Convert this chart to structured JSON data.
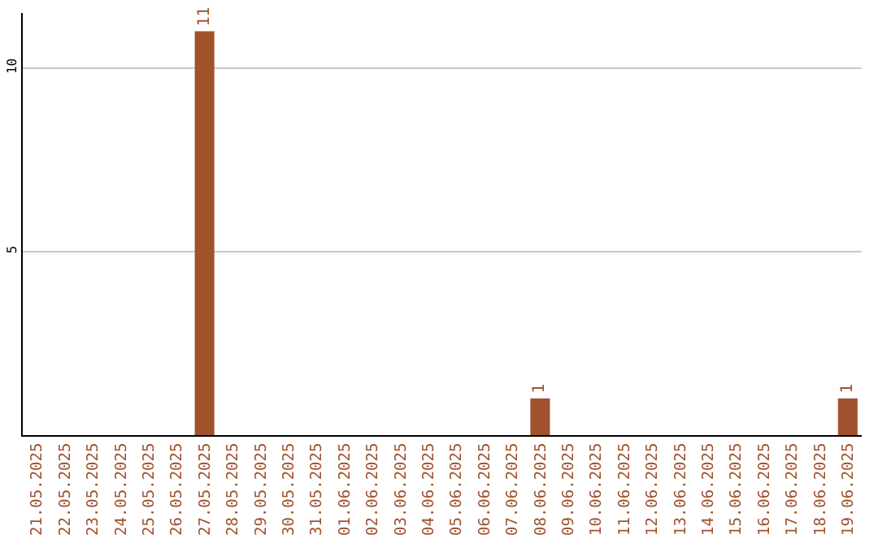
{
  "chart_data": {
    "type": "bar",
    "categories": [
      "21.05.2025",
      "22.05.2025",
      "23.05.2025",
      "24.05.2025",
      "25.05.2025",
      "26.05.2025",
      "27.05.2025",
      "28.05.2025",
      "29.05.2025",
      "30.05.2025",
      "31.05.2025",
      "01.06.2025",
      "02.06.2025",
      "03.06.2025",
      "04.06.2025",
      "05.06.2025",
      "06.06.2025",
      "07.06.2025",
      "08.06.2025",
      "09.06.2025",
      "10.06.2025",
      "11.06.2025",
      "12.06.2025",
      "13.06.2025",
      "14.06.2025",
      "15.06.2025",
      "16.06.2025",
      "17.06.2025",
      "18.06.2025",
      "19.06.2025"
    ],
    "values": [
      0,
      0,
      0,
      0,
      0,
      0,
      11,
      0,
      0,
      0,
      0,
      0,
      0,
      0,
      0,
      0,
      0,
      0,
      1,
      0,
      0,
      0,
      0,
      0,
      0,
      0,
      0,
      0,
      0,
      1
    ],
    "value_labels": [
      null,
      null,
      null,
      null,
      null,
      null,
      "11",
      null,
      null,
      null,
      null,
      null,
      null,
      null,
      null,
      null,
      null,
      null,
      "1",
      null,
      null,
      null,
      null,
      null,
      null,
      null,
      null,
      null,
      null,
      "1"
    ],
    "color": "#a0522d",
    "ylim": [
      0,
      11.5
    ],
    "yticks": [
      5,
      10
    ],
    "grid": "y",
    "legend": false
  }
}
